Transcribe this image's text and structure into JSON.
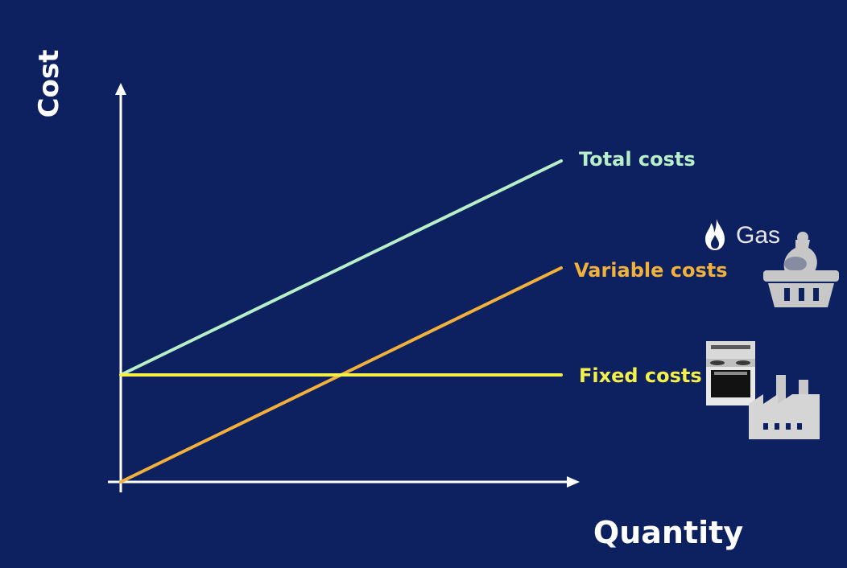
{
  "chart_data": {
    "type": "line",
    "xlabel": "Quantity",
    "ylabel": "Cost",
    "x": [
      0,
      1
    ],
    "xlim": [
      0,
      1.05
    ],
    "ylim": [
      0,
      3.5
    ],
    "grid": false,
    "legend": "inline-right",
    "series": [
      {
        "name": "Total costs",
        "values": [
          1,
          3
        ],
        "color": "#b7f0c8"
      },
      {
        "name": "Variable costs",
        "values": [
          0,
          2
        ],
        "color": "#f2b13a"
      },
      {
        "name": "Fixed costs",
        "values": [
          1,
          1
        ],
        "color": "#f5ef4a"
      }
    ]
  },
  "icons": {
    "gas": {
      "name": "flame-icon",
      "label": "Gas"
    },
    "basket": {
      "name": "shopping-basket-icon"
    },
    "stove": {
      "name": "stove-icon"
    },
    "factory": {
      "name": "factory-icon"
    }
  },
  "colors": {
    "background": "#0d2161",
    "axis": "#ffffff"
  }
}
